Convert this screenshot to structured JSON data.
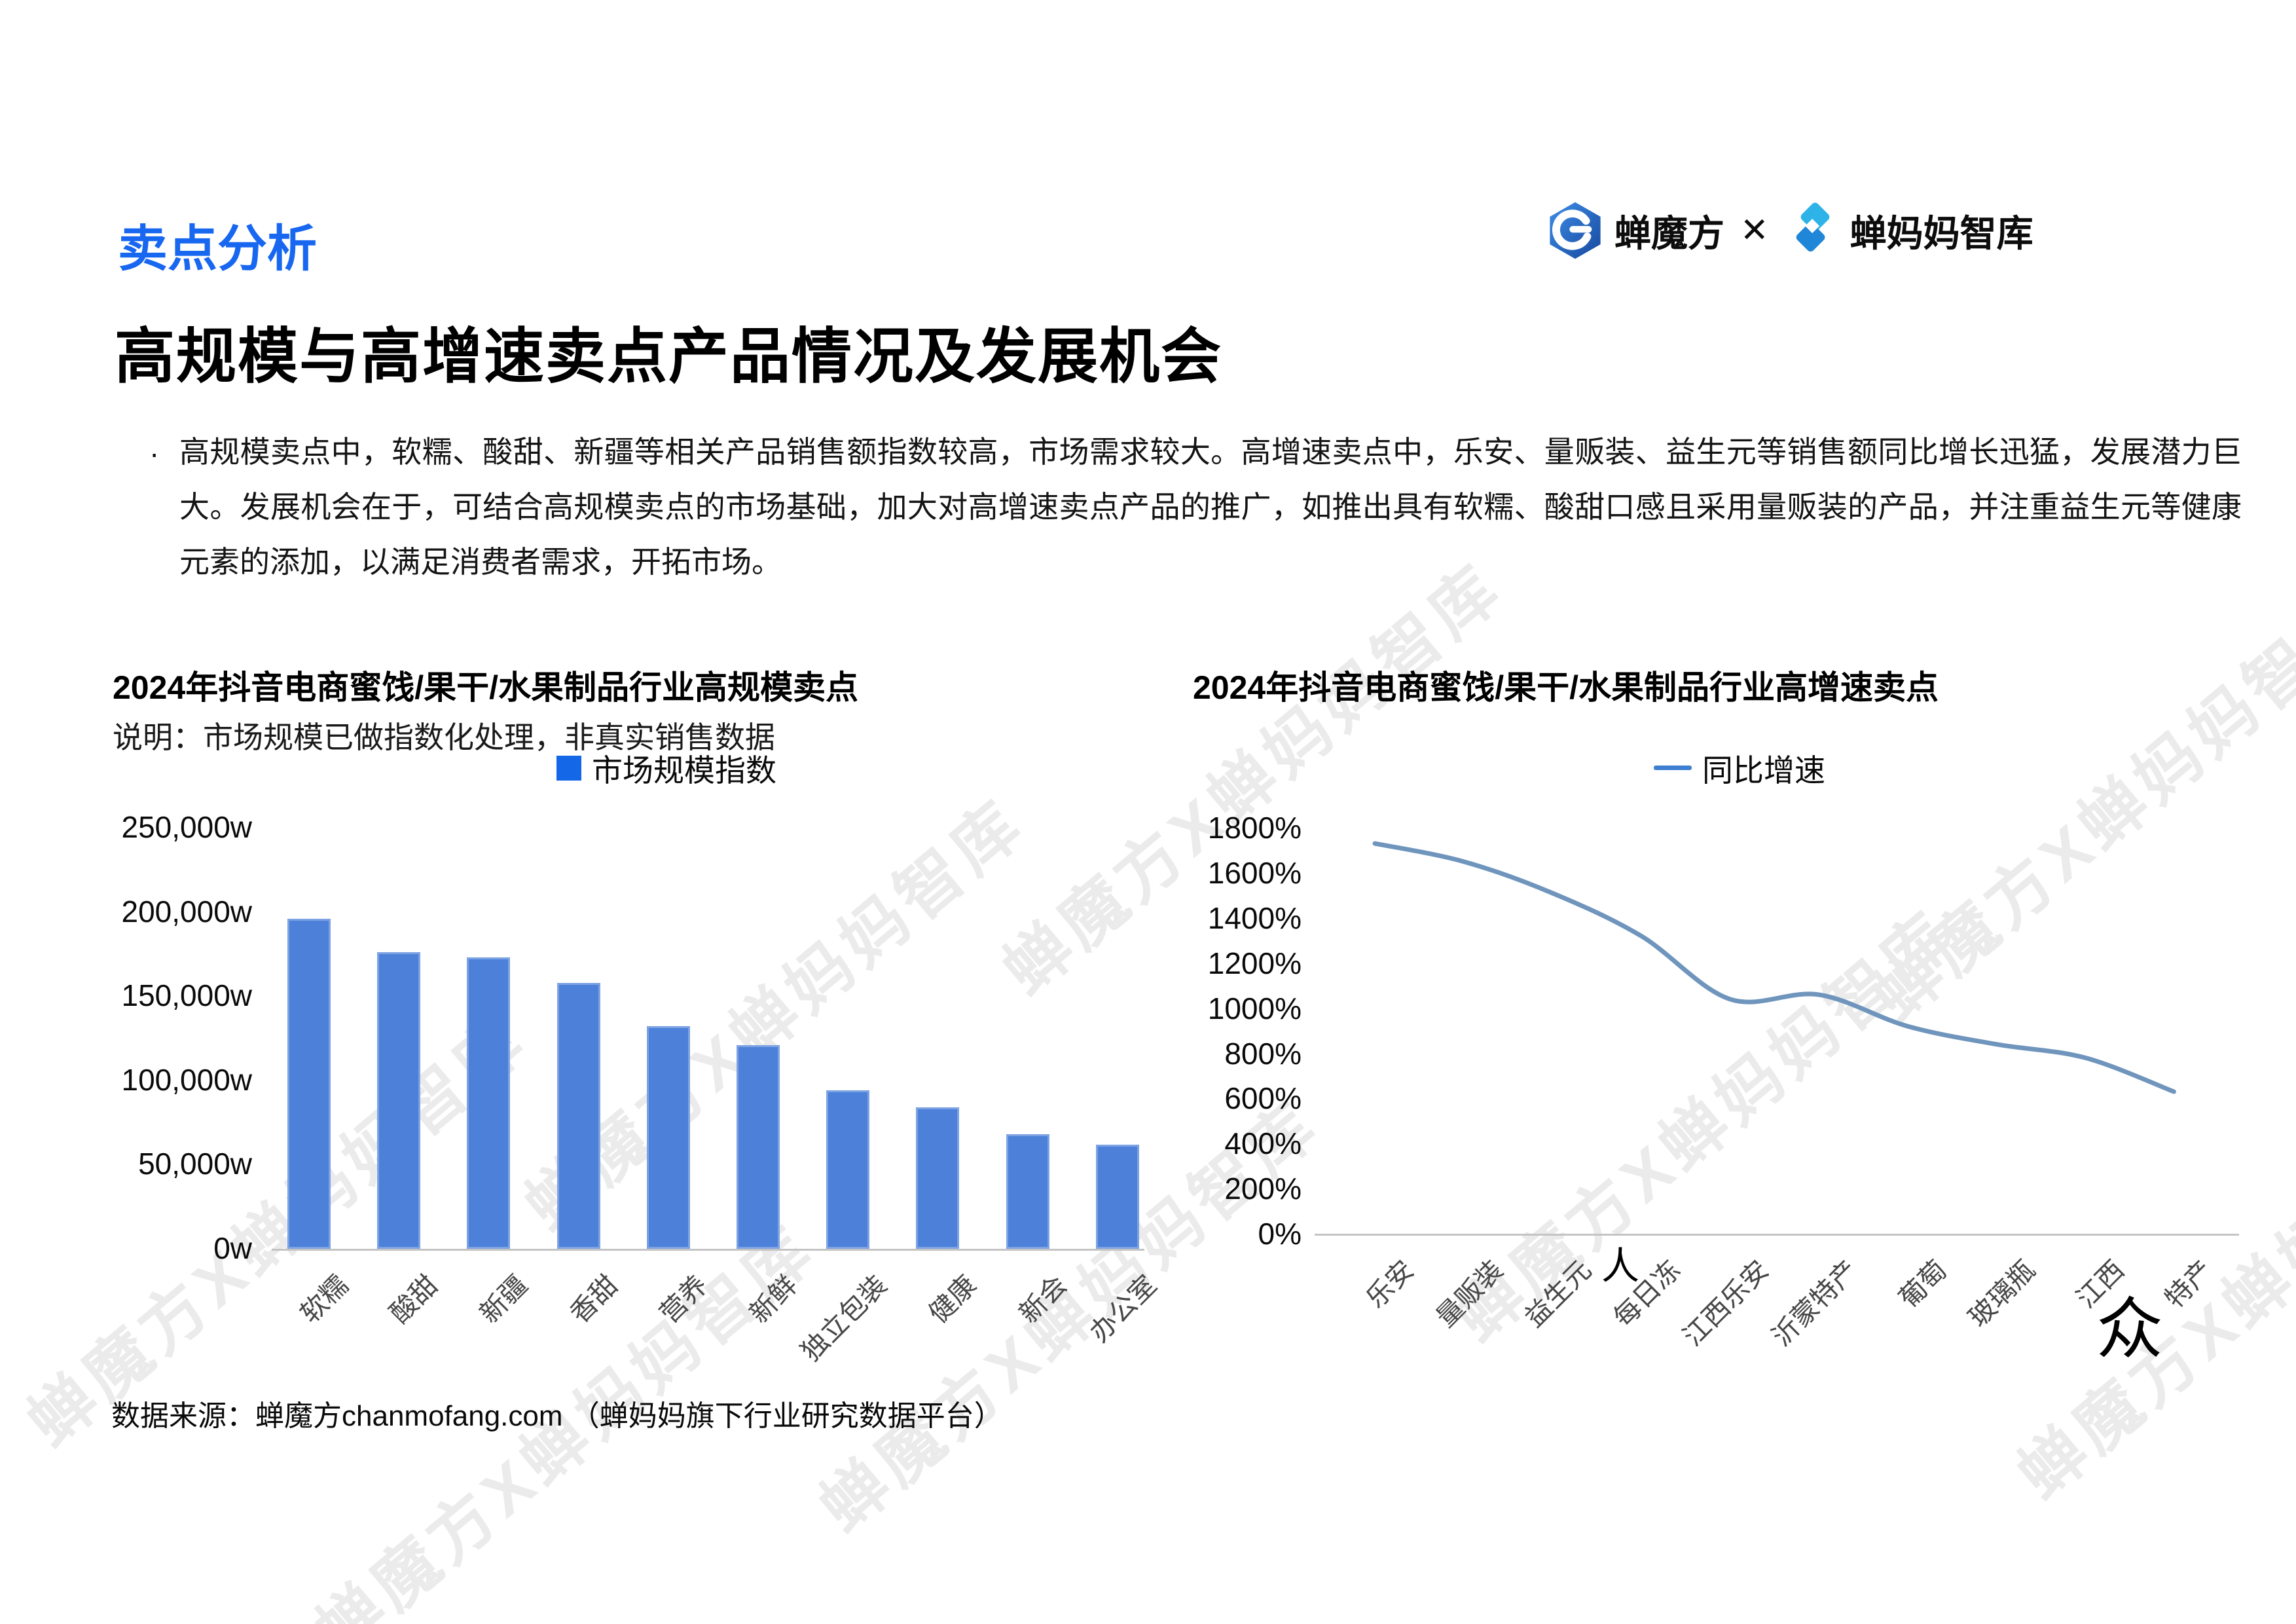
{
  "header": {
    "section_label": "卖点分析",
    "logo_left_text": "蝉魔方",
    "logo_separator": "✕",
    "logo_right_text": "蝉妈妈智库",
    "title": "高规模与高增速卖点产品情况及发展机会",
    "bullet": "·",
    "summary": "高规模卖点中，软糯、酸甜、新疆等相关产品销售额指数较高，市场需求较大。高增速卖点中，乐安、量贩装、益生元等销售额同比增长迅猛，发展潜力巨大。发展机会在于，可结合高规模卖点的市场基础，加大对高增速卖点产品的推广，如推出具有软糯、酸甜口感且采用量贩装的产品，并注重益生元等健康元素的添加，以满足消费者需求，开拓市场。"
  },
  "watermark": {
    "text": "蝉魔方X蝉妈妈智库",
    "color": "#ebebeb"
  },
  "artifacts": {
    "glyph1": "人",
    "glyph2": "众"
  },
  "footer": {
    "source": "数据来源：蝉魔方chanmofang.com （蝉妈妈旗下行业研究数据平台）"
  },
  "chart_data": [
    {
      "type": "bar",
      "title": "2024年抖音电商蜜饯/果干/水果制品行业高规模卖点",
      "note": "说明：市场规模已做指数化处理，非真实销售数据",
      "legend": "市场规模指数",
      "legend_color": "#1468E8",
      "bar_color": "#4C80D9",
      "categories": [
        "软糯",
        "酸甜",
        "新疆",
        "香甜",
        "营养",
        "新鲜",
        "独立包装",
        "健康",
        "新会",
        "办公室"
      ],
      "values": [
        196000,
        176000,
        173000,
        158000,
        132000,
        121000,
        94000,
        84000,
        68000,
        62000
      ],
      "y_ticks": [
        "250,000w",
        "200,000w",
        "150,000w",
        "100,000w",
        "50,000w",
        "0w"
      ],
      "ylabel_unit": "w",
      "ylim": [
        0,
        250000
      ],
      "grid": false,
      "legend_position": "top-center"
    },
    {
      "type": "line",
      "title": "2024年抖音电商蜜饯/果干/水果制品行业高增速卖点",
      "legend": "同比增速",
      "line_color": "#6F95BD",
      "legend_line_color": "#3E7FD2",
      "categories": [
        "乐安",
        "量贩装",
        "益生元",
        "每日冻",
        "江西乐安",
        "沂蒙特产",
        "葡萄",
        "玻璃瓶",
        "江西",
        "特产"
      ],
      "values": [
        1730,
        1650,
        1510,
        1320,
        1040,
        1060,
        920,
        840,
        780,
        630
      ],
      "y_ticks": [
        "1800%",
        "1600%",
        "1400%",
        "1200%",
        "1000%",
        "800%",
        "600%",
        "400%",
        "200%",
        "0%"
      ],
      "ylabel_unit": "%",
      "ylim": [
        0,
        1800
      ],
      "grid": false,
      "legend_position": "top-center"
    }
  ]
}
